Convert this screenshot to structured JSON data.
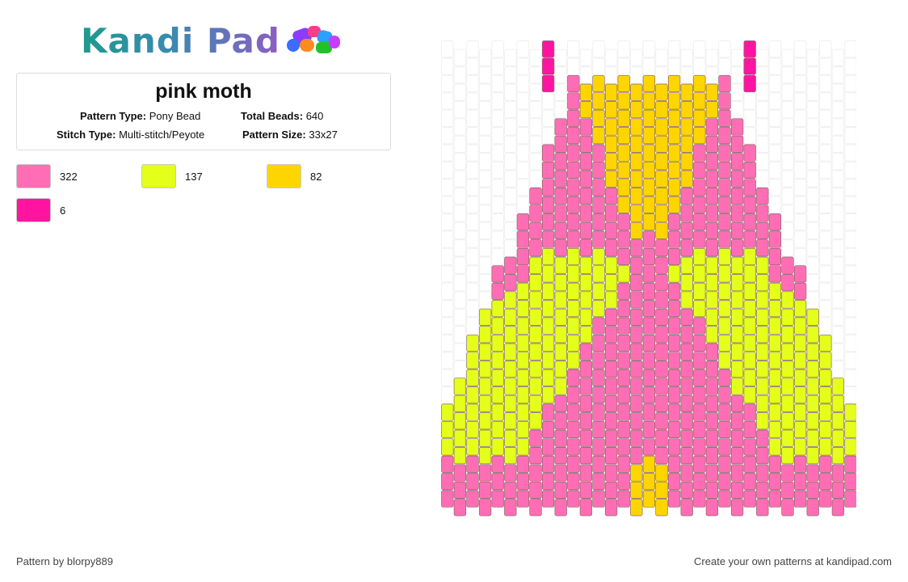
{
  "logo": {
    "text": "Kandi Pad",
    "icon": "bead-pile-icon"
  },
  "pattern": {
    "title": "pink moth",
    "type_label": "Pattern Type:",
    "type_value": "Pony Bead",
    "beads_label": "Total Beads:",
    "beads_value": "640",
    "stitch_label": "Stitch Type:",
    "stitch_value": "Multi-stitch/Peyote",
    "size_label": "Pattern Size:",
    "size_value": "33x27"
  },
  "colors": [
    {
      "hex": "#ff6eb4",
      "count": "322"
    },
    {
      "hex": "#e4ff1a",
      "count": "137"
    },
    {
      "hex": "#ffd500",
      "count": "82"
    },
    {
      "hex": "#ff14a2",
      "count": "6"
    }
  ],
  "footer": {
    "author": "Pattern by blorpy889",
    "cta": "Create your own patterns at kandipad.com"
  }
}
